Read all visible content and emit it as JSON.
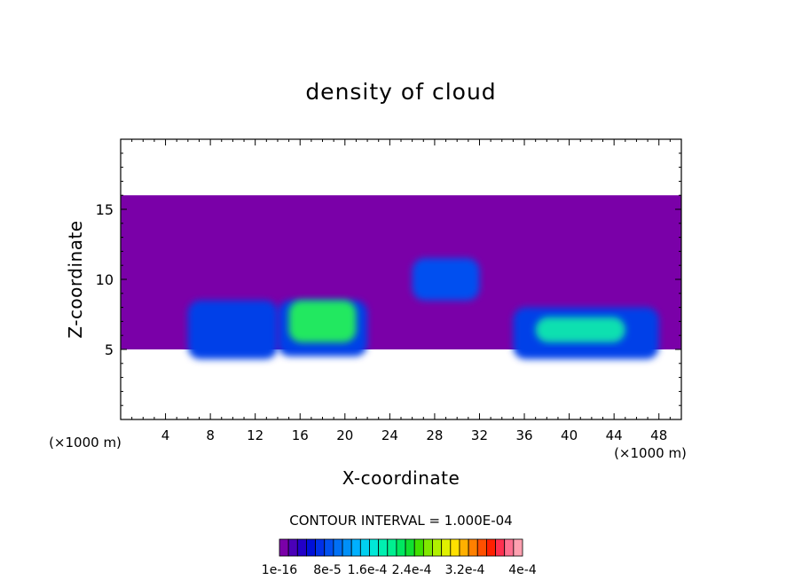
{
  "chart_data": {
    "type": "heatmap",
    "title": "density of cloud",
    "xlabel": "X-coordinate",
    "ylabel": "Z-coordinate",
    "x_unit": "(×1000 m)",
    "z_unit": "(×1000 m)",
    "xlim": [
      0,
      50
    ],
    "ylim": [
      0,
      20
    ],
    "x_ticks": [
      4,
      8,
      12,
      16,
      20,
      24,
      28,
      32,
      36,
      40,
      44,
      48
    ],
    "y_ticks": [
      5,
      10,
      15
    ],
    "contour_interval_text": "CONTOUR INTERVAL = 1.000E-04",
    "colorbar": {
      "colors": [
        "#7a00a8",
        "#4a00b8",
        "#2200c8",
        "#0010d8",
        "#0030e8",
        "#0050f0",
        "#0070f5",
        "#0090f8",
        "#00b0ff",
        "#00d0f0",
        "#00e8d8",
        "#00f0b0",
        "#00f090",
        "#00e860",
        "#10e030",
        "#40e000",
        "#80e800",
        "#b0f000",
        "#e0f000",
        "#ffe000",
        "#ffb000",
        "#ff8000",
        "#ff5000",
        "#ff2000",
        "#ff3050",
        "#ff7090",
        "#ffa0b0"
      ],
      "labels": [
        "1e-16",
        "8e-5",
        "1.6e-4",
        "2.4e-4",
        "3.2e-4",
        "4e-4"
      ]
    },
    "cloud_regions": [
      {
        "x": [
          0,
          50
        ],
        "z": [
          5,
          16
        ],
        "level": "1e-16",
        "color": "#7a00a8"
      },
      {
        "x": [
          6,
          14
        ],
        "z": [
          4.3,
          8.5
        ],
        "level": "~5e-5",
        "color": "#0040e8"
      },
      {
        "x": [
          14,
          22
        ],
        "z": [
          4.5,
          8.5
        ],
        "level": "~5e-5",
        "color": "#0040e8"
      },
      {
        "x": [
          15,
          21
        ],
        "z": [
          5.5,
          8.5
        ],
        "level": "~1.6e-4",
        "color": "#20e860"
      },
      {
        "x": [
          35,
          48
        ],
        "z": [
          4.3,
          8
        ],
        "level": "~5e-5",
        "color": "#0040e8"
      },
      {
        "x": [
          37,
          45
        ],
        "z": [
          5.5,
          7.3
        ],
        "level": "~1.2e-4",
        "color": "#10e0b0"
      },
      {
        "x": [
          26,
          32
        ],
        "z": [
          8.5,
          11.5
        ],
        "level": "~4e-5",
        "color": "#0050f0"
      }
    ]
  }
}
